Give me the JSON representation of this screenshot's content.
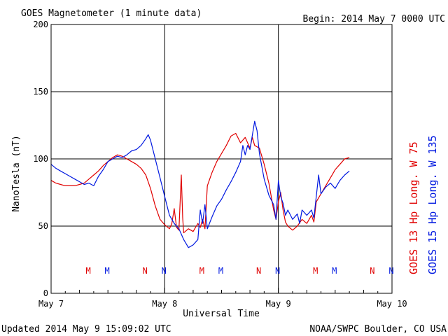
{
  "header": {
    "title": "GOES Magnetometer (1 minute data)",
    "begin": "Begin:  2014 May 7 0000 UTC"
  },
  "footer": {
    "updated": "Updated 2014 May  9 15:09:02 UTC",
    "credit": "NOAA/SWPC Boulder, CO USA"
  },
  "chart_data": {
    "type": "line",
    "title": "GOES Magnetometer (1 minute data)",
    "xlabel": "Universal Time",
    "ylabel": "NanoTesla (nT)",
    "xlim": [
      0,
      72
    ],
    "ylim": [
      0,
      200
    ],
    "yticks": [
      0,
      50,
      100,
      150,
      200
    ],
    "xticks": [
      {
        "x": 0,
        "label": "May 7"
      },
      {
        "x": 24,
        "label": "May 8"
      },
      {
        "x": 48,
        "label": "May 9"
      },
      {
        "x": 72,
        "label": "May 10"
      }
    ],
    "grid": true,
    "legend_position": "right-vertical",
    "series": [
      {
        "name": "GOES 13 Hp  Long. W 75",
        "color": "#e00000",
        "points": [
          [
            0,
            84
          ],
          [
            1,
            82
          ],
          [
            2,
            81
          ],
          [
            3,
            80
          ],
          [
            4,
            80
          ],
          [
            5,
            80
          ],
          [
            6,
            81
          ],
          [
            7,
            82
          ],
          [
            8,
            85
          ],
          [
            9,
            88
          ],
          [
            10,
            91
          ],
          [
            11,
            95
          ],
          [
            12,
            98
          ],
          [
            13,
            101
          ],
          [
            14,
            103
          ],
          [
            15,
            102
          ],
          [
            16,
            100
          ],
          [
            17,
            98
          ],
          [
            18,
            96
          ],
          [
            19,
            93
          ],
          [
            20,
            88
          ],
          [
            21,
            78
          ],
          [
            22,
            65
          ],
          [
            23,
            55
          ],
          [
            24,
            51
          ],
          [
            25,
            48
          ],
          [
            25.5,
            52
          ],
          [
            26,
            63
          ],
          [
            26.5,
            49
          ],
          [
            27,
            47
          ],
          [
            27.5,
            88
          ],
          [
            27.8,
            56
          ],
          [
            28,
            45
          ],
          [
            29,
            48
          ],
          [
            30,
            46
          ],
          [
            31,
            52
          ],
          [
            31.5,
            49
          ],
          [
            32,
            55
          ],
          [
            32.5,
            48
          ],
          [
            33,
            80
          ],
          [
            34,
            90
          ],
          [
            35,
            98
          ],
          [
            36,
            104
          ],
          [
            37,
            110
          ],
          [
            38,
            117
          ],
          [
            39,
            119
          ],
          [
            40,
            112
          ],
          [
            41,
            116
          ],
          [
            42,
            108
          ],
          [
            42.5,
            116
          ],
          [
            43,
            110
          ],
          [
            44,
            108
          ],
          [
            45,
            96
          ],
          [
            46,
            82
          ],
          [
            47,
            62
          ],
          [
            47.5,
            55
          ],
          [
            48,
            68
          ],
          [
            48.5,
            75
          ],
          [
            49,
            62
          ],
          [
            49.5,
            53
          ],
          [
            50,
            50
          ],
          [
            51,
            47
          ],
          [
            52,
            50
          ],
          [
            53,
            55
          ],
          [
            54,
            52
          ],
          [
            55,
            58
          ],
          [
            55.5,
            53
          ],
          [
            56,
            68
          ],
          [
            57,
            74
          ],
          [
            58,
            80
          ],
          [
            59,
            86
          ],
          [
            60,
            92
          ],
          [
            61,
            96
          ],
          [
            62,
            100
          ],
          [
            63,
            101
          ]
        ]
      },
      {
        "name": "GOES 15 Hp  Long. W 135",
        "color": "#0018e0",
        "points": [
          [
            0,
            96
          ],
          [
            1,
            93
          ],
          [
            2,
            91
          ],
          [
            3,
            89
          ],
          [
            4,
            87
          ],
          [
            5,
            85
          ],
          [
            6,
            83
          ],
          [
            7,
            81
          ],
          [
            8,
            82
          ],
          [
            9,
            80
          ],
          [
            10,
            87
          ],
          [
            11,
            92
          ],
          [
            12,
            98
          ],
          [
            13,
            100
          ],
          [
            14,
            102
          ],
          [
            15,
            101
          ],
          [
            16,
            103
          ],
          [
            17,
            106
          ],
          [
            18,
            107
          ],
          [
            19,
            110
          ],
          [
            20,
            115
          ],
          [
            20.5,
            118
          ],
          [
            21,
            114
          ],
          [
            22,
            100
          ],
          [
            23,
            86
          ],
          [
            24,
            72
          ],
          [
            25,
            58
          ],
          [
            26,
            52
          ],
          [
            27,
            48
          ],
          [
            28,
            40
          ],
          [
            29,
            34
          ],
          [
            30,
            36
          ],
          [
            31,
            40
          ],
          [
            31.5,
            62
          ],
          [
            32,
            52
          ],
          [
            32.5,
            66
          ],
          [
            33,
            48
          ],
          [
            34,
            57
          ],
          [
            35,
            65
          ],
          [
            36,
            70
          ],
          [
            37,
            77
          ],
          [
            38,
            83
          ],
          [
            39,
            90
          ],
          [
            40,
            98
          ],
          [
            40.5,
            110
          ],
          [
            41,
            103
          ],
          [
            41.5,
            110
          ],
          [
            42,
            107
          ],
          [
            43,
            128
          ],
          [
            43.5,
            121
          ],
          [
            44,
            104
          ],
          [
            45,
            85
          ],
          [
            46,
            73
          ],
          [
            47,
            66
          ],
          [
            47.5,
            55
          ],
          [
            48,
            84
          ],
          [
            48.5,
            72
          ],
          [
            49,
            67
          ],
          [
            49.5,
            58
          ],
          [
            50,
            62
          ],
          [
            51,
            55
          ],
          [
            52,
            59
          ],
          [
            52.5,
            52
          ],
          [
            53,
            62
          ],
          [
            54,
            58
          ],
          [
            55,
            62
          ],
          [
            55.5,
            56
          ],
          [
            56,
            72
          ],
          [
            56.5,
            88
          ],
          [
            57,
            74
          ],
          [
            58,
            79
          ],
          [
            59,
            82
          ],
          [
            60,
            78
          ],
          [
            61,
            84
          ],
          [
            62,
            88
          ],
          [
            63,
            91
          ]
        ]
      }
    ],
    "markers": [
      {
        "x": 5,
        "label": "M",
        "color": "#e00000"
      },
      {
        "x": 10,
        "label": "M",
        "color": "#0018e0"
      },
      {
        "x": 20,
        "label": "N",
        "color": "#e00000"
      },
      {
        "x": 25,
        "label": "N",
        "color": "#0018e0"
      },
      {
        "x": 35,
        "label": "M",
        "color": "#e00000"
      },
      {
        "x": 40,
        "label": "M",
        "color": "#0018e0"
      },
      {
        "x": 50,
        "label": "N",
        "color": "#e00000"
      },
      {
        "x": 55,
        "label": "N",
        "color": "#0018e0"
      },
      {
        "x": 65,
        "label": "M",
        "color": "#e00000"
      },
      {
        "x": 70,
        "label": "M",
        "color": "#0018e0"
      },
      {
        "x": 80,
        "label": "N",
        "color": "#e00000"
      },
      {
        "x": 85,
        "label": "N",
        "color": "#0018e0"
      }
    ]
  }
}
